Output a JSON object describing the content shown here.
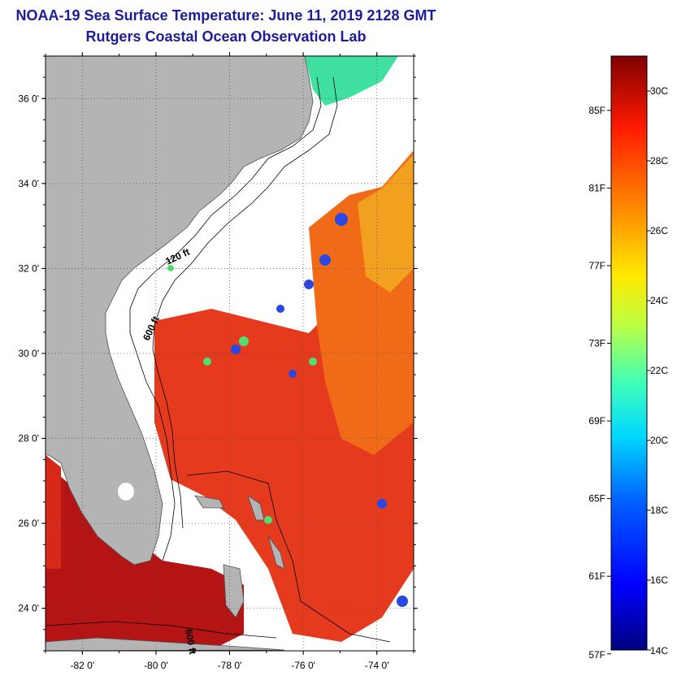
{
  "title": "NOAA-19 Sea Surface Temperature:  June 11, 2019 2128 GMT",
  "subtitle": "Rutgers Coastal Ocean Observation Lab",
  "map": {
    "lon_range": [
      -83,
      -73
    ],
    "lat_range": [
      23,
      37
    ],
    "lat_ticks": [
      {
        "value": 36,
        "label": "36 0'"
      },
      {
        "value": 34,
        "label": "34 0'"
      },
      {
        "value": 32,
        "label": "32 0'"
      },
      {
        "value": 30,
        "label": "30 0'"
      },
      {
        "value": 28,
        "label": "28 0'"
      },
      {
        "value": 26,
        "label": "26 0'"
      },
      {
        "value": 24,
        "label": "24 0'"
      }
    ],
    "lon_ticks": [
      {
        "value": -82,
        "label": "-82 0'"
      },
      {
        "value": -80,
        "label": "-80 0'"
      },
      {
        "value": -78,
        "label": "-78 0'"
      },
      {
        "value": -76,
        "label": "-76 0'"
      },
      {
        "value": -74,
        "label": "-74 0'"
      }
    ],
    "contour_labels": [
      "120 ft",
      "600 ft",
      "600 ft"
    ],
    "colors": {
      "land": "#b4b4b4",
      "cloud": "#ffffff",
      "warm_water": "#e8301c",
      "hot_water": "#b01010"
    }
  },
  "colorbar": {
    "range_c": [
      14,
      31
    ],
    "fahrenheit_labels": [
      "85F",
      "81F",
      "77F",
      "73F",
      "69F",
      "65F",
      "61F",
      "57F"
    ],
    "celsius_labels": [
      "30C",
      "28C",
      "26C",
      "24C",
      "22C",
      "20C",
      "18C",
      "16C",
      "14C"
    ]
  }
}
